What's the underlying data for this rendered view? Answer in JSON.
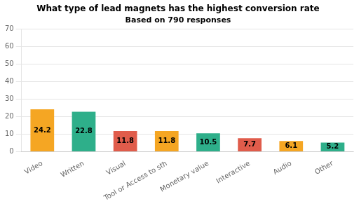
{
  "chart_data": {
    "type": "bar",
    "title": "What type of lead magnets has the highest conversion rate",
    "subtitle": "Based on 790 responses",
    "categories": [
      "Video",
      "Written",
      "Visual",
      "Tool or Access to sth",
      "Monetary value",
      "Interactive",
      "Audio",
      "Other"
    ],
    "values": [
      24.2,
      22.8,
      11.8,
      11.8,
      10.5,
      7.7,
      6.1,
      5.2
    ],
    "colors": [
      "#F5A623",
      "#2EAF8A",
      "#E05C4B",
      "#F5A623",
      "#2EAF8A",
      "#E05C4B",
      "#F5A623",
      "#2EAF8A"
    ],
    "ylim": [
      0,
      70
    ],
    "yticks": [
      0,
      10,
      20,
      30,
      40,
      50,
      60,
      70
    ],
    "grid": true,
    "data_labels": true
  }
}
